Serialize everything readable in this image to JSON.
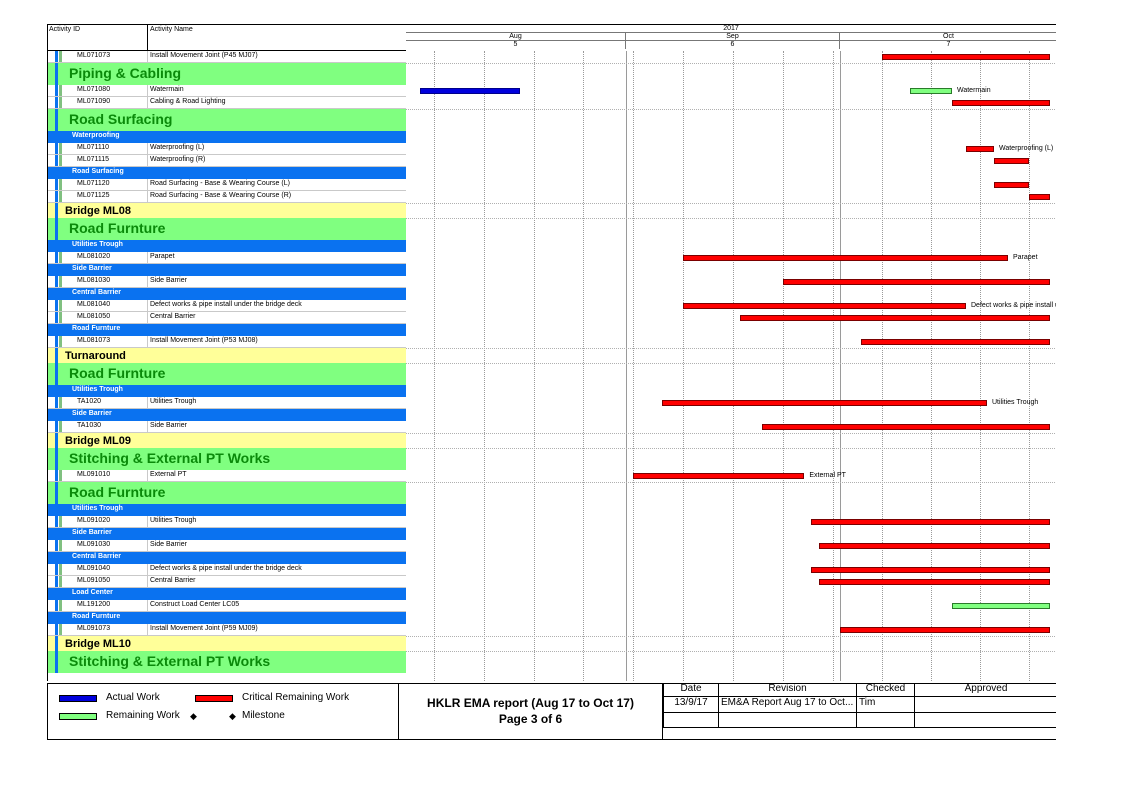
{
  "header": {
    "col_activity_id": "Activity ID",
    "col_activity_name": "Activity Name",
    "year": "2017",
    "months": [
      "Aug",
      "Sep",
      "Oct"
    ],
    "month_numbers": [
      "5",
      "6",
      "7"
    ]
  },
  "rows": [
    {
      "type": "activity",
      "id": "ML071073",
      "name": "Install Movement Joint (P45 MJ07)"
    },
    {
      "type": "band-green",
      "label": "Piping & Cabling"
    },
    {
      "type": "activity",
      "id": "ML071080",
      "name": "Watermain"
    },
    {
      "type": "activity",
      "id": "ML071090",
      "name": "Cabling & Road Lighting"
    },
    {
      "type": "band-green",
      "label": "Road Surfacing"
    },
    {
      "type": "band-blue",
      "label": "Waterproofing"
    },
    {
      "type": "activity",
      "id": "ML071110",
      "name": "Waterproofing (L)"
    },
    {
      "type": "activity",
      "id": "ML071115",
      "name": "Waterproofing (R)"
    },
    {
      "type": "band-blue",
      "label": "Road Surfacing"
    },
    {
      "type": "activity",
      "id": "ML071120",
      "name": "Road Surfacing - Base & Wearing Course (L)"
    },
    {
      "type": "activity",
      "id": "ML071125",
      "name": "Road Surfacing - Base & Wearing Course (R)"
    },
    {
      "type": "band-yellow",
      "label": "Bridge ML08"
    },
    {
      "type": "band-green",
      "label": "Road Furnture"
    },
    {
      "type": "band-blue",
      "label": "Utilities Trough"
    },
    {
      "type": "activity",
      "id": "ML081020",
      "name": "Parapet"
    },
    {
      "type": "band-blue",
      "label": "Side Barrier"
    },
    {
      "type": "activity",
      "id": "ML081030",
      "name": "Side Barrier"
    },
    {
      "type": "band-blue",
      "label": "Central Barrier"
    },
    {
      "type": "activity",
      "id": "ML081040",
      "name": "Defect works & pipe install under the bridge deck"
    },
    {
      "type": "activity",
      "id": "ML081050",
      "name": "Central Barrier"
    },
    {
      "type": "band-blue",
      "label": "Road Furnture"
    },
    {
      "type": "activity",
      "id": "ML081073",
      "name": "Install Movement Joint (P53 MJ08)"
    },
    {
      "type": "band-yellow",
      "label": "Turnaround"
    },
    {
      "type": "band-green",
      "label": "Road Furnture"
    },
    {
      "type": "band-blue",
      "label": "Utilities Trough"
    },
    {
      "type": "activity",
      "id": "TA1020",
      "name": "Utilities Trough"
    },
    {
      "type": "band-blue",
      "label": "Side Barrier"
    },
    {
      "type": "activity",
      "id": "TA1030",
      "name": "Side Barrier"
    },
    {
      "type": "band-yellow",
      "label": "Bridge ML09"
    },
    {
      "type": "band-green",
      "label": "Stitching & External PT Works"
    },
    {
      "type": "activity",
      "id": "ML091010",
      "name": "External PT"
    },
    {
      "type": "band-green",
      "label": "Road Furnture"
    },
    {
      "type": "band-blue",
      "label": "Utilities Trough"
    },
    {
      "type": "activity",
      "id": "ML091020",
      "name": "Utilities Trough"
    },
    {
      "type": "band-blue",
      "label": "Side Barrier"
    },
    {
      "type": "activity",
      "id": "ML091030",
      "name": "Side Barrier"
    },
    {
      "type": "band-blue",
      "label": "Central Barrier"
    },
    {
      "type": "activity",
      "id": "ML091040",
      "name": "Defect works & pipe install under the bridge deck"
    },
    {
      "type": "activity",
      "id": "ML091050",
      "name": "Central Barrier"
    },
    {
      "type": "band-blue",
      "label": "Load Center"
    },
    {
      "type": "activity",
      "id": "ML191200",
      "name": "Construct Load Center LC05"
    },
    {
      "type": "band-blue",
      "label": "Road Furnture"
    },
    {
      "type": "activity",
      "id": "ML091073",
      "name": "Install Movement Joint (P59 MJ09)"
    },
    {
      "type": "band-yellow",
      "label": "Bridge ML10"
    },
    {
      "type": "band-green",
      "label": "Stitching & External PT Works"
    }
  ],
  "bars": [
    {
      "row": 0,
      "kind": "crit",
      "start": "2017-10-07",
      "end": "2017-10-31",
      "label": ""
    },
    {
      "row": 2,
      "kind": "actual",
      "start": "2017-08-03",
      "end": "2017-08-17",
      "label": ""
    },
    {
      "row": 2,
      "kind": "remain",
      "start": "2017-10-11",
      "end": "2017-10-17",
      "label": "Watermain"
    },
    {
      "row": 3,
      "kind": "crit",
      "start": "2017-10-17",
      "end": "2017-10-31",
      "label": ""
    },
    {
      "row": 6,
      "kind": "crit",
      "start": "2017-10-19",
      "end": "2017-10-23",
      "label": "Waterproofing (L)"
    },
    {
      "row": 7,
      "kind": "crit",
      "start": "2017-10-23",
      "end": "2017-10-28",
      "label": ""
    },
    {
      "row": 9,
      "kind": "crit",
      "start": "2017-10-23",
      "end": "2017-10-28",
      "label": ""
    },
    {
      "row": 10,
      "kind": "crit",
      "start": "2017-10-28",
      "end": "2017-10-31",
      "label": ""
    },
    {
      "row": 14,
      "kind": "crit",
      "start": "2017-09-09",
      "end": "2017-10-25",
      "label": "Parapet"
    },
    {
      "row": 16,
      "kind": "crit",
      "start": "2017-09-23",
      "end": "2017-10-31",
      "label": ""
    },
    {
      "row": 18,
      "kind": "crit",
      "start": "2017-09-09",
      "end": "2017-10-19",
      "label": "Defect works & pipe install under the bridge deck"
    },
    {
      "row": 19,
      "kind": "crit",
      "start": "2017-09-17",
      "end": "2017-10-31",
      "label": ""
    },
    {
      "row": 21,
      "kind": "crit",
      "start": "2017-10-04",
      "end": "2017-10-31",
      "label": ""
    },
    {
      "row": 25,
      "kind": "crit",
      "start": "2017-09-06",
      "end": "2017-10-22",
      "label": "Utilities Trough"
    },
    {
      "row": 27,
      "kind": "crit",
      "start": "2017-09-20",
      "end": "2017-10-31",
      "label": ""
    },
    {
      "row": 30,
      "kind": "crit",
      "start": "2017-09-02",
      "end": "2017-09-26",
      "label": "External PT"
    },
    {
      "row": 33,
      "kind": "crit",
      "start": "2017-09-27",
      "end": "2017-10-31",
      "label": ""
    },
    {
      "row": 35,
      "kind": "crit",
      "start": "2017-09-28",
      "end": "2017-10-31",
      "label": ""
    },
    {
      "row": 37,
      "kind": "crit",
      "start": "2017-09-27",
      "end": "2017-10-31",
      "label": ""
    },
    {
      "row": 38,
      "kind": "crit",
      "start": "2017-09-28",
      "end": "2017-10-31",
      "label": ""
    },
    {
      "row": 40,
      "kind": "remain",
      "start": "2017-10-17",
      "end": "2017-10-31",
      "label": ""
    },
    {
      "row": 42,
      "kind": "crit",
      "start": "2017-10-01",
      "end": "2017-10-31",
      "label": ""
    }
  ],
  "legend": {
    "actual_work": "Actual Work",
    "critical_remaining": "Critical Remaining Work",
    "remaining_work": "Remaining Work",
    "milestone": "Milestone",
    "colors": {
      "actual": "#0000dd",
      "critical": "#ff0000",
      "remaining": "#80ff80"
    }
  },
  "report": {
    "title": "HKLR EMA report (Aug 17 to Oct 17)",
    "page": "Page 3 of 6"
  },
  "revision_table": {
    "headers": [
      "Date",
      "Revision",
      "Checked",
      "Approved"
    ],
    "row1": [
      "13/9/17",
      "EM&A Report Aug 17 to Oct...",
      "Tim",
      ""
    ],
    "row2": [
      "",
      "",
      "",
      ""
    ]
  }
}
